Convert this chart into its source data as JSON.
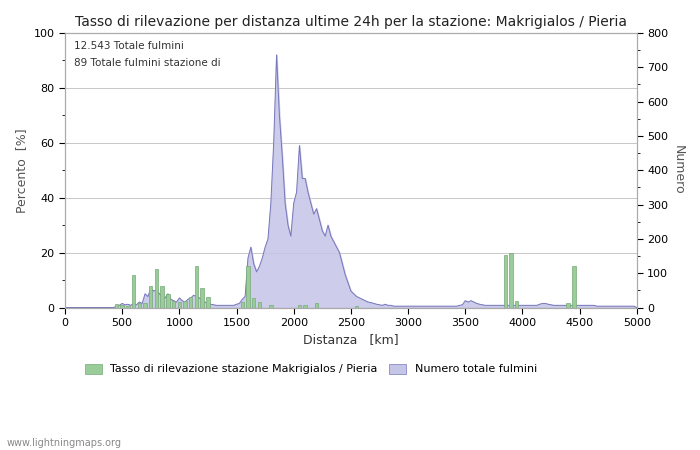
{
  "title": "Tasso di rilevazione per distanza ultime 24h per la stazione: Makrigialos / Pieria",
  "annotation_line1": "12.543 Totale fulmini",
  "annotation_line2": "89 Totale fulmini stazione di",
  "xlabel": "Distanza   [km]",
  "ylabel_left": "Percento  [%]",
  "ylabel_right": "Numero",
  "xlim": [
    0,
    5000
  ],
  "ylim_left": [
    0,
    100
  ],
  "ylim_right": [
    0,
    800
  ],
  "xticks": [
    0,
    500,
    1000,
    1500,
    2000,
    2500,
    3000,
    3500,
    4000,
    4500,
    5000
  ],
  "yticks_left": [
    0,
    20,
    40,
    60,
    80,
    100
  ],
  "yticks_right": [
    0,
    100,
    200,
    300,
    400,
    500,
    600,
    700,
    800
  ],
  "legend_label_green": "Tasso di rilevazione stazione Makrigialos / Pieria",
  "legend_label_blue": "Numero totale fulmini",
  "watermark": "www.lightningmaps.org",
  "background_color": "#ffffff",
  "grid_color": "#c8c8c8",
  "line_color": "#7777bb",
  "fill_color": "#c5c5e8",
  "bar_color": "#99cc99",
  "bar_edge_color": "#77aa77",
  "title_fontsize": 10,
  "axis_fontsize": 9,
  "tick_fontsize": 8,
  "green_bars": [
    [
      450,
      1.2
    ],
    [
      500,
      0.8
    ],
    [
      550,
      0.5
    ],
    [
      600,
      12.0
    ],
    [
      650,
      1.5
    ],
    [
      700,
      1.5
    ],
    [
      750,
      8.0
    ],
    [
      800,
      14.0
    ],
    [
      850,
      8.0
    ],
    [
      900,
      5.0
    ],
    [
      950,
      2.5
    ],
    [
      1000,
      2.0
    ],
    [
      1050,
      2.5
    ],
    [
      1100,
      4.0
    ],
    [
      1150,
      15.0
    ],
    [
      1200,
      7.0
    ],
    [
      1250,
      4.0
    ],
    [
      1550,
      2.0
    ],
    [
      1600,
      15.0
    ],
    [
      1650,
      3.5
    ],
    [
      1700,
      2.0
    ],
    [
      1800,
      1.0
    ],
    [
      2050,
      1.0
    ],
    [
      2100,
      1.0
    ],
    [
      2200,
      1.5
    ],
    [
      2550,
      0.5
    ],
    [
      3850,
      19.0
    ],
    [
      3900,
      20.0
    ],
    [
      3950,
      2.5
    ],
    [
      4400,
      1.5
    ],
    [
      4450,
      15.0
    ]
  ],
  "blue_line_x": [
    0,
    25,
    50,
    75,
    100,
    125,
    150,
    175,
    200,
    225,
    250,
    275,
    300,
    325,
    350,
    375,
    400,
    425,
    450,
    475,
    500,
    525,
    550,
    575,
    600,
    625,
    650,
    675,
    700,
    725,
    750,
    775,
    800,
    825,
    850,
    875,
    900,
    925,
    950,
    975,
    1000,
    1025,
    1050,
    1075,
    1100,
    1125,
    1150,
    1175,
    1200,
    1225,
    1250,
    1275,
    1300,
    1325,
    1350,
    1375,
    1400,
    1425,
    1450,
    1475,
    1500,
    1525,
    1550,
    1575,
    1600,
    1625,
    1650,
    1675,
    1700,
    1725,
    1750,
    1775,
    1800,
    1825,
    1850,
    1875,
    1900,
    1925,
    1950,
    1975,
    2000,
    2025,
    2050,
    2075,
    2100,
    2125,
    2150,
    2175,
    2200,
    2225,
    2250,
    2275,
    2300,
    2325,
    2350,
    2375,
    2400,
    2425,
    2450,
    2475,
    2500,
    2525,
    2550,
    2575,
    2600,
    2625,
    2650,
    2675,
    2700,
    2725,
    2750,
    2775,
    2800,
    2825,
    2850,
    2875,
    2900,
    2925,
    2950,
    2975,
    3000,
    3025,
    3050,
    3075,
    3100,
    3125,
    3150,
    3175,
    3200,
    3225,
    3250,
    3275,
    3300,
    3325,
    3350,
    3375,
    3400,
    3425,
    3450,
    3475,
    3500,
    3525,
    3550,
    3575,
    3600,
    3625,
    3650,
    3675,
    3700,
    3725,
    3750,
    3775,
    3800,
    3825,
    3850,
    3875,
    3900,
    3925,
    3950,
    3975,
    4000,
    4025,
    4050,
    4075,
    4100,
    4125,
    4150,
    4175,
    4200,
    4225,
    4250,
    4275,
    4300,
    4325,
    4350,
    4375,
    4400,
    4425,
    4450,
    4475,
    4500,
    4525,
    4550,
    4575,
    4600,
    4625,
    4650,
    4675,
    4700,
    4725,
    4750,
    4775,
    4800,
    4825,
    4850,
    4875,
    4900,
    4925,
    4950,
    4975,
    5000
  ],
  "blue_line_y": [
    0,
    0,
    0,
    0,
    0,
    0,
    0,
    0,
    0,
    0,
    0,
    0,
    0,
    0,
    0,
    0,
    0,
    0,
    0.5,
    0.8,
    1.5,
    1.0,
    1.2,
    0.8,
    1.5,
    1.0,
    2.0,
    1.5,
    5.0,
    4.0,
    7.0,
    6.0,
    6.5,
    5.0,
    4.0,
    3.5,
    5.0,
    3.0,
    2.5,
    2.0,
    3.5,
    2.5,
    2.0,
    3.0,
    3.5,
    4.5,
    4.0,
    3.5,
    2.5,
    2.0,
    1.5,
    1.2,
    1.0,
    0.8,
    0.8,
    0.8,
    0.8,
    0.8,
    0.8,
    0.8,
    1.2,
    1.5,
    3.0,
    4.0,
    18.0,
    22.0,
    16.0,
    13.0,
    15.0,
    18.0,
    22.0,
    25.0,
    38.0,
    60.0,
    92.0,
    70.0,
    55.0,
    38.0,
    30.0,
    26.0,
    38.0,
    42.0,
    59.0,
    47.0,
    47.0,
    42.0,
    38.0,
    34.0,
    36.0,
    32.0,
    28.0,
    26.0,
    30.0,
    26.0,
    24.0,
    22.0,
    20.0,
    16.0,
    12.0,
    9.0,
    6.0,
    5.0,
    4.0,
    3.5,
    3.0,
    2.5,
    2.0,
    1.8,
    1.5,
    1.2,
    1.0,
    0.8,
    1.2,
    0.8,
    0.8,
    0.5,
    0.5,
    0.5,
    0.5,
    0.5,
    0.5,
    0.5,
    0.5,
    0.5,
    0.5,
    0.5,
    0.5,
    0.5,
    0.5,
    0.5,
    0.5,
    0.5,
    0.5,
    0.5,
    0.5,
    0.5,
    0.5,
    0.5,
    0.8,
    1.0,
    2.5,
    2.0,
    2.5,
    2.0,
    1.5,
    1.2,
    1.0,
    0.8,
    0.8,
    0.8,
    0.8,
    0.8,
    0.8,
    0.8,
    0.8,
    0.8,
    0.8,
    0.8,
    0.8,
    0.8,
    0.8,
    0.8,
    0.8,
    0.8,
    0.8,
    0.8,
    1.2,
    1.5,
    1.5,
    1.2,
    1.0,
    0.8,
    0.8,
    0.8,
    0.8,
    0.8,
    0.8,
    0.8,
    0.8,
    0.8,
    0.8,
    0.8,
    0.8,
    0.8,
    0.8,
    0.8,
    0.5,
    0.5,
    0.5,
    0.5,
    0.5,
    0.5,
    0.5,
    0.5,
    0.5,
    0.5,
    0.5,
    0.5,
    0.5,
    0.5,
    0
  ]
}
